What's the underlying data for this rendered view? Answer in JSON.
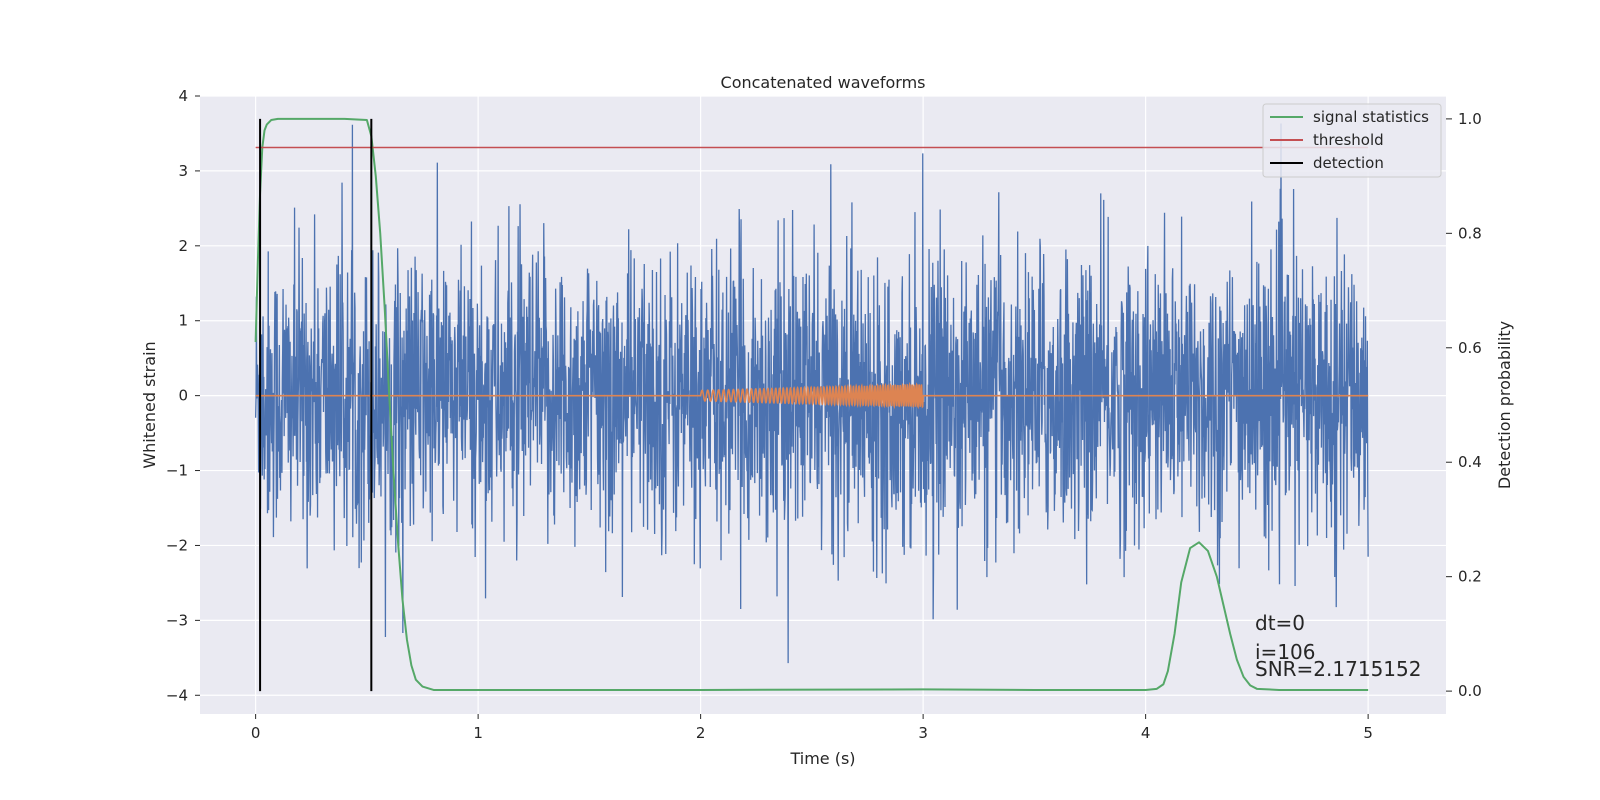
{
  "chart_data": {
    "type": "line",
    "title": "Concatenated waveforms",
    "xlabel": "Time (s)",
    "ylabel": "Whitened strain",
    "y2label": "Detection probability",
    "xlim": [
      -0.25,
      5.35
    ],
    "ylim": [
      -4.25,
      4.0
    ],
    "y2lim": [
      -0.04,
      1.04
    ],
    "x_ticks": [
      0,
      1,
      2,
      3,
      4,
      5
    ],
    "y_ticks": [
      -4,
      -3,
      -2,
      -1,
      0,
      1,
      2,
      3,
      4
    ],
    "y2_ticks": [
      0.0,
      0.2,
      0.4,
      0.6,
      0.8,
      1.0
    ],
    "x_tick_labels": [
      "0",
      "1",
      "2",
      "3",
      "4",
      "5"
    ],
    "y_tick_labels": [
      "−4",
      "−3",
      "−2",
      "−1",
      "0",
      "1",
      "2",
      "3",
      "4"
    ],
    "y2_tick_labels": [
      "0.0",
      "0.2",
      "0.4",
      "0.6",
      "0.8",
      "1.0"
    ],
    "grid": true,
    "legend_position": "top-right",
    "colors": {
      "background": "#eaeaf2",
      "grid": "#ffffff",
      "noise": "#4c72b0",
      "injection": "#dd8452",
      "signal_statistics": "#55a868",
      "threshold": "#c44e52",
      "detection": "#000000"
    },
    "series": [
      {
        "key": "whitened_strain",
        "axis": "left",
        "x_range": [
          0,
          5
        ],
        "amplitude_envelope": [
          -3.9,
          3.65
        ],
        "description_values": {
          "typical_peak": 2.5
        }
      },
      {
        "key": "injected_waveform",
        "axis": "left",
        "x_range": [
          2.0,
          3.0
        ],
        "amplitude_start": 0.07,
        "amplitude_end": 0.15
      },
      {
        "key": "signal_statistics",
        "name": "signal statistics",
        "axis": "right",
        "x": [
          0.0,
          0.01,
          0.02,
          0.03,
          0.04,
          0.05,
          0.07,
          0.1,
          0.2,
          0.3,
          0.4,
          0.5,
          0.52,
          0.54,
          0.56,
          0.58,
          0.6,
          0.62,
          0.64,
          0.66,
          0.68,
          0.7,
          0.72,
          0.75,
          0.8,
          1.0,
          2.0,
          3.0,
          3.5,
          4.0,
          4.05,
          4.08,
          4.1,
          4.13,
          4.16,
          4.2,
          4.24,
          4.28,
          4.32,
          4.35,
          4.38,
          4.41,
          4.44,
          4.47,
          4.5,
          4.6,
          5.0
        ],
        "y": [
          0.61,
          0.75,
          0.87,
          0.95,
          0.98,
          0.99,
          0.998,
          1.0,
          1.0,
          1.0,
          1.0,
          0.998,
          0.97,
          0.9,
          0.8,
          0.67,
          0.52,
          0.38,
          0.26,
          0.16,
          0.09,
          0.045,
          0.02,
          0.008,
          0.002,
          0.002,
          0.002,
          0.003,
          0.002,
          0.002,
          0.004,
          0.012,
          0.035,
          0.1,
          0.19,
          0.25,
          0.26,
          0.245,
          0.2,
          0.15,
          0.1,
          0.055,
          0.025,
          0.01,
          0.004,
          0.002,
          0.002
        ]
      },
      {
        "key": "threshold",
        "name": "threshold",
        "axis": "right",
        "x": [
          0,
          5
        ],
        "y": [
          0.95,
          0.95
        ]
      },
      {
        "key": "detection",
        "name": "detection",
        "axis": "right",
        "type": "vertical_lines",
        "x": [
          0.02,
          0.52
        ]
      }
    ],
    "annotations": {
      "dt": "dt=0",
      "index": "i=106",
      "snr": "SNR=2.1715152"
    }
  }
}
